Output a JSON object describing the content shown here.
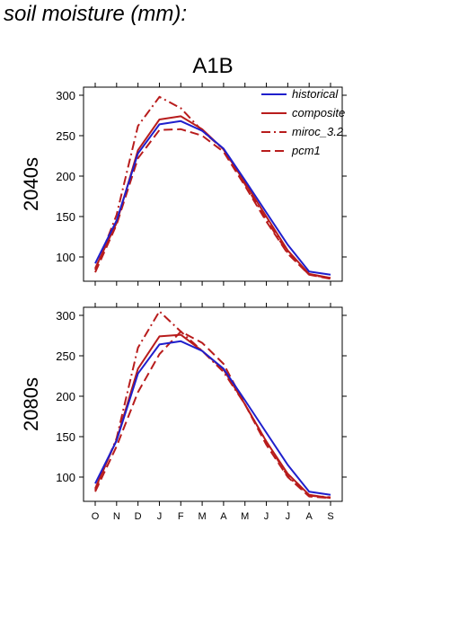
{
  "page": {
    "title": "soil moisture (mm):"
  },
  "scenario_title": "A1B",
  "colors": {
    "historical": "#1f1fcc",
    "model": "#b81c1c",
    "axis": "#000000"
  },
  "chart_data": [
    {
      "type": "line",
      "panel_label": "2040s",
      "categories": [
        "O",
        "N",
        "D",
        "J",
        "F",
        "M",
        "A",
        "M",
        "J",
        "J",
        "A",
        "S"
      ],
      "ylim": [
        70,
        310
      ],
      "yticks": [
        100,
        150,
        200,
        250,
        300
      ],
      "legend_position": "top-right",
      "series": [
        {
          "name": "historical",
          "style": "solid",
          "color": "#1f1fcc",
          "values": [
            92,
            145,
            228,
            264,
            268,
            256,
            234,
            195,
            155,
            115,
            82,
            78
          ]
        },
        {
          "name": "composite",
          "style": "solid",
          "color": "#b81c1c",
          "values": [
            86,
            142,
            232,
            270,
            274,
            258,
            233,
            192,
            150,
            108,
            79,
            74
          ]
        },
        {
          "name": "miroc_3.2",
          "style": "dashdot",
          "color": "#b81c1c",
          "values": [
            84,
            152,
            262,
            298,
            284,
            256,
            233,
            190,
            146,
            105,
            78,
            74
          ]
        },
        {
          "name": "pcm1",
          "style": "dashed",
          "color": "#b81c1c",
          "values": [
            81,
            140,
            222,
            257,
            258,
            250,
            230,
            188,
            144,
            104,
            78,
            73
          ]
        }
      ]
    },
    {
      "type": "line",
      "panel_label": "2080s",
      "categories": [
        "O",
        "N",
        "D",
        "J",
        "F",
        "M",
        "A",
        "M",
        "J",
        "J",
        "A",
        "S"
      ],
      "ylim": [
        70,
        310
      ],
      "yticks": [
        100,
        150,
        200,
        250,
        300
      ],
      "series": [
        {
          "name": "historical",
          "style": "solid",
          "color": "#1f1fcc",
          "values": [
            92,
            145,
            228,
            264,
            268,
            256,
            234,
            195,
            155,
            115,
            82,
            78
          ]
        },
        {
          "name": "composite",
          "style": "solid",
          "color": "#b81c1c",
          "values": [
            86,
            146,
            234,
            274,
            276,
            256,
            233,
            190,
            144,
            104,
            78,
            74
          ]
        },
        {
          "name": "miroc_3.2",
          "style": "dashdot",
          "color": "#b81c1c",
          "values": [
            84,
            148,
            260,
            305,
            280,
            256,
            230,
            190,
            144,
            101,
            77,
            75
          ]
        },
        {
          "name": "pcm1",
          "style": "dashed",
          "color": "#b81c1c",
          "values": [
            82,
            138,
            205,
            252,
            280,
            266,
            240,
            190,
            140,
            100,
            76,
            74
          ]
        }
      ]
    }
  ]
}
